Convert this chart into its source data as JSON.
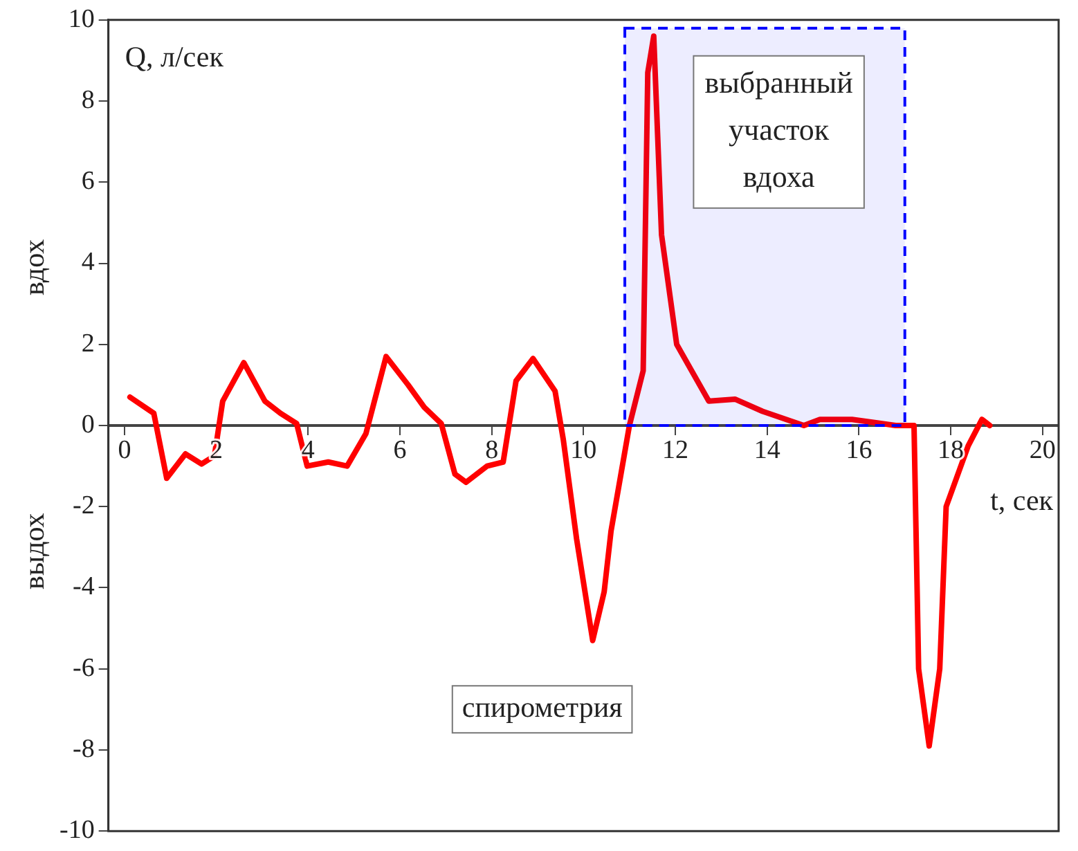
{
  "chart_data": {
    "type": "line",
    "xlabel": "t, сек",
    "ylabel": "Q, л/сек",
    "xlim": [
      -0.35,
      20.35
    ],
    "ylim": [
      -10,
      10
    ],
    "xticks": [
      0,
      2,
      4,
      6,
      8,
      10,
      12,
      14,
      16,
      18,
      20
    ],
    "yticks": [
      -10,
      -8,
      -6,
      -4,
      -2,
      0,
      2,
      4,
      6,
      8,
      10
    ],
    "grid": false,
    "marker": "none",
    "line_style": "solid",
    "series": [
      {
        "color": "#ff0000",
        "x": [
          0.12,
          0.64,
          0.92,
          1.33,
          1.68,
          1.96,
          2.14,
          2.6,
          3.06,
          3.4,
          3.75,
          3.98,
          4.44,
          4.85,
          5.26,
          5.7,
          6.18,
          6.53,
          6.9,
          7.2,
          7.44,
          7.9,
          8.25,
          8.53,
          8.9,
          9.38,
          9.56,
          9.85,
          10.2,
          10.45,
          10.6,
          11.0,
          11.3,
          11.4,
          11.53,
          11.7,
          12.03,
          12.73,
          13.3,
          13.9,
          14.8,
          15.15,
          15.85,
          16.8,
          17.2,
          17.3,
          17.53,
          17.76,
          17.9,
          18.38,
          18.68,
          18.85
        ],
        "values": [
          0.7,
          0.3,
          -1.3,
          -0.7,
          -0.95,
          -0.75,
          0.6,
          1.55,
          0.6,
          0.3,
          0.05,
          -1.0,
          -0.9,
          -1.0,
          -0.2,
          1.7,
          1.0,
          0.45,
          0.05,
          -1.2,
          -1.4,
          -1.0,
          -0.9,
          1.1,
          1.65,
          0.85,
          -0.35,
          -2.8,
          -5.3,
          -4.1,
          -2.6,
          0,
          1.35,
          8.7,
          9.6,
          4.7,
          2.0,
          0.6,
          0.65,
          0.35,
          0,
          0.15,
          0.15,
          0,
          0,
          -6,
          -7.9,
          -6,
          -2,
          -0.5,
          0.15,
          0
        ]
      }
    ],
    "bands": [
      {
        "axis": "x",
        "from": 10.9,
        "to": 17,
        "label": "выбранный\nучасток\nвдоха",
        "color": "#0000ff"
      }
    ],
    "annotations": [
      "вдох",
      "выдох",
      "спирометрия"
    ]
  }
}
